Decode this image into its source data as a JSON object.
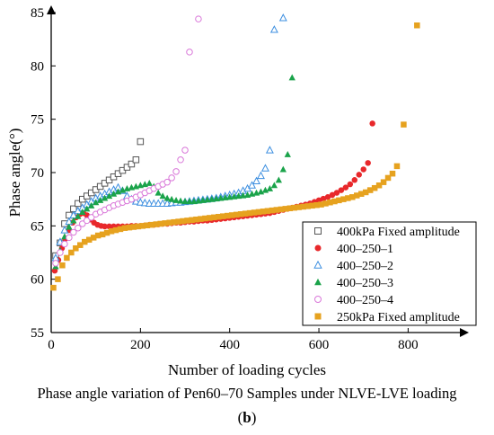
{
  "figure": {
    "caption": "Phase angle variation of Pen60–70 Samples under NLVE-LVE loading",
    "panel_open": "(",
    "panel_letter": "b",
    "panel_close": ")"
  },
  "chart_data": {
    "type": "scatter",
    "title": "",
    "xlabel": "Number of loading cycles",
    "ylabel": "Phase angle(°)",
    "xlim": [
      0,
      920
    ],
    "ylim": [
      55,
      85
    ],
    "xticks": [
      0,
      200,
      400,
      600,
      800
    ],
    "yticks": [
      55,
      60,
      65,
      70,
      75,
      80,
      85
    ],
    "legend_position": "bottom-right",
    "grid": false,
    "series": [
      {
        "name": "400kPa Fixed amplitude",
        "marker": "open-square",
        "color": "#555555",
        "points": [
          [
            10,
            62.2
          ],
          [
            20,
            63.4
          ],
          [
            30,
            65.2
          ],
          [
            40,
            66.0
          ],
          [
            50,
            66.6
          ],
          [
            60,
            67.1
          ],
          [
            70,
            67.5
          ],
          [
            80,
            67.8
          ],
          [
            90,
            68.1
          ],
          [
            100,
            68.4
          ],
          [
            110,
            68.7
          ],
          [
            120,
            69.0
          ],
          [
            130,
            69.3
          ],
          [
            140,
            69.6
          ],
          [
            150,
            69.9
          ],
          [
            160,
            70.2
          ],
          [
            170,
            70.5
          ],
          [
            180,
            70.8
          ],
          [
            190,
            71.2
          ],
          [
            200,
            72.9
          ]
        ]
      },
      {
        "name": "400–250–1",
        "marker": "filled-circle",
        "color": "#e8282b",
        "points": [
          [
            8,
            60.8
          ],
          [
            16,
            61.8
          ],
          [
            24,
            62.9
          ],
          [
            32,
            63.8
          ],
          [
            40,
            64.6
          ],
          [
            48,
            65.3
          ],
          [
            56,
            65.8
          ],
          [
            64,
            66.1
          ],
          [
            72,
            66.2
          ],
          [
            80,
            66.0
          ],
          [
            88,
            65.6
          ],
          [
            96,
            65.3
          ],
          [
            104,
            65.1
          ],
          [
            112,
            65.0
          ],
          [
            120,
            64.95
          ],
          [
            130,
            64.95
          ],
          [
            140,
            64.95
          ],
          [
            150,
            64.95
          ],
          [
            160,
            64.95
          ],
          [
            170,
            64.95
          ],
          [
            180,
            65.0
          ],
          [
            190,
            65.0
          ],
          [
            200,
            65.0
          ],
          [
            210,
            65.05
          ],
          [
            220,
            65.1
          ],
          [
            230,
            65.1
          ],
          [
            240,
            65.15
          ],
          [
            250,
            65.2
          ],
          [
            260,
            65.2
          ],
          [
            270,
            65.25
          ],
          [
            280,
            65.3
          ],
          [
            290,
            65.3
          ],
          [
            300,
            65.35
          ],
          [
            310,
            65.4
          ],
          [
            320,
            65.4
          ],
          [
            330,
            65.45
          ],
          [
            340,
            65.5
          ],
          [
            350,
            65.5
          ],
          [
            360,
            65.55
          ],
          [
            370,
            65.6
          ],
          [
            380,
            65.65
          ],
          [
            390,
            65.7
          ],
          [
            400,
            65.75
          ],
          [
            410,
            65.8
          ],
          [
            420,
            65.85
          ],
          [
            430,
            65.9
          ],
          [
            440,
            65.95
          ],
          [
            450,
            66.0
          ],
          [
            460,
            66.05
          ],
          [
            470,
            66.1
          ],
          [
            480,
            66.15
          ],
          [
            490,
            66.2
          ],
          [
            500,
            66.3
          ],
          [
            510,
            66.4
          ],
          [
            520,
            66.5
          ],
          [
            530,
            66.6
          ],
          [
            540,
            66.7
          ],
          [
            550,
            66.8
          ],
          [
            560,
            66.9
          ],
          [
            570,
            67.0
          ],
          [
            580,
            67.1
          ],
          [
            590,
            67.25
          ],
          [
            600,
            67.4
          ],
          [
            610,
            67.55
          ],
          [
            620,
            67.7
          ],
          [
            630,
            67.9
          ],
          [
            640,
            68.1
          ],
          [
            650,
            68.35
          ],
          [
            660,
            68.6
          ],
          [
            670,
            68.9
          ],
          [
            680,
            69.3
          ],
          [
            690,
            69.8
          ],
          [
            700,
            70.3
          ],
          [
            710,
            70.9
          ],
          [
            720,
            74.6
          ]
        ]
      },
      {
        "name": "400–250–2",
        "marker": "open-triangle",
        "color": "#3d8fe0",
        "points": [
          [
            10,
            62.0
          ],
          [
            20,
            63.5
          ],
          [
            30,
            64.6
          ],
          [
            40,
            65.4
          ],
          [
            50,
            66.0
          ],
          [
            60,
            66.4
          ],
          [
            70,
            66.7
          ],
          [
            80,
            67.0
          ],
          [
            90,
            67.3
          ],
          [
            100,
            67.6
          ],
          [
            110,
            67.8
          ],
          [
            120,
            68.0
          ],
          [
            130,
            68.2
          ],
          [
            140,
            68.4
          ],
          [
            150,
            68.6
          ],
          [
            160,
            68.3
          ],
          [
            170,
            67.8
          ],
          [
            180,
            67.5
          ],
          [
            190,
            67.3
          ],
          [
            200,
            67.2
          ],
          [
            210,
            67.15
          ],
          [
            220,
            67.1
          ],
          [
            230,
            67.1
          ],
          [
            240,
            67.1
          ],
          [
            250,
            67.1
          ],
          [
            260,
            67.1
          ],
          [
            270,
            67.15
          ],
          [
            280,
            67.2
          ],
          [
            290,
            67.2
          ],
          [
            300,
            67.25
          ],
          [
            310,
            67.3
          ],
          [
            320,
            67.35
          ],
          [
            330,
            67.4
          ],
          [
            340,
            67.45
          ],
          [
            350,
            67.5
          ],
          [
            360,
            67.55
          ],
          [
            370,
            67.6
          ],
          [
            380,
            67.7
          ],
          [
            390,
            67.8
          ],
          [
            400,
            67.9
          ],
          [
            410,
            68.0
          ],
          [
            420,
            68.1
          ],
          [
            430,
            68.3
          ],
          [
            440,
            68.5
          ],
          [
            450,
            68.8
          ],
          [
            460,
            69.2
          ],
          [
            470,
            69.7
          ],
          [
            480,
            70.4
          ],
          [
            490,
            72.1
          ],
          [
            500,
            83.4
          ],
          [
            520,
            84.5
          ]
        ]
      },
      {
        "name": "400–250–3",
        "marker": "filled-triangle",
        "color": "#1aa34a",
        "points": [
          [
            10,
            61.2
          ],
          [
            20,
            62.7
          ],
          [
            30,
            64.0
          ],
          [
            40,
            64.9
          ],
          [
            50,
            65.5
          ],
          [
            60,
            65.9
          ],
          [
            70,
            66.3
          ],
          [
            80,
            66.6
          ],
          [
            90,
            66.9
          ],
          [
            100,
            67.2
          ],
          [
            110,
            67.4
          ],
          [
            120,
            67.6
          ],
          [
            130,
            67.8
          ],
          [
            140,
            68.0
          ],
          [
            150,
            68.2
          ],
          [
            160,
            68.35
          ],
          [
            170,
            68.5
          ],
          [
            180,
            68.6
          ],
          [
            190,
            68.7
          ],
          [
            200,
            68.8
          ],
          [
            210,
            68.9
          ],
          [
            220,
            69.0
          ],
          [
            230,
            68.7
          ],
          [
            240,
            68.1
          ],
          [
            250,
            67.8
          ],
          [
            260,
            67.6
          ],
          [
            270,
            67.5
          ],
          [
            280,
            67.4
          ],
          [
            290,
            67.35
          ],
          [
            300,
            67.3
          ],
          [
            310,
            67.3
          ],
          [
            320,
            67.3
          ],
          [
            330,
            67.35
          ],
          [
            340,
            67.4
          ],
          [
            350,
            67.45
          ],
          [
            360,
            67.5
          ],
          [
            370,
            67.55
          ],
          [
            380,
            67.6
          ],
          [
            390,
            67.65
          ],
          [
            400,
            67.7
          ],
          [
            410,
            67.75
          ],
          [
            420,
            67.8
          ],
          [
            430,
            67.85
          ],
          [
            440,
            67.9
          ],
          [
            450,
            68.0
          ],
          [
            460,
            68.1
          ],
          [
            470,
            68.2
          ],
          [
            480,
            68.35
          ],
          [
            490,
            68.5
          ],
          [
            500,
            68.8
          ],
          [
            510,
            69.3
          ],
          [
            520,
            70.3
          ],
          [
            530,
            71.7
          ],
          [
            540,
            78.9
          ]
        ]
      },
      {
        "name": "400–250–4",
        "marker": "open-circle",
        "color": "#d977d9",
        "points": [
          [
            10,
            61.5
          ],
          [
            20,
            62.5
          ],
          [
            30,
            63.3
          ],
          [
            40,
            63.9
          ],
          [
            50,
            64.4
          ],
          [
            60,
            64.8
          ],
          [
            70,
            65.2
          ],
          [
            80,
            65.5
          ],
          [
            90,
            65.8
          ],
          [
            100,
            66.1
          ],
          [
            110,
            66.3
          ],
          [
            120,
            66.5
          ],
          [
            130,
            66.7
          ],
          [
            140,
            66.9
          ],
          [
            150,
            67.05
          ],
          [
            160,
            67.2
          ],
          [
            170,
            67.35
          ],
          [
            180,
            67.5
          ],
          [
            190,
            67.7
          ],
          [
            200,
            67.9
          ],
          [
            210,
            68.1
          ],
          [
            220,
            68.3
          ],
          [
            230,
            68.5
          ],
          [
            240,
            68.7
          ],
          [
            250,
            68.9
          ],
          [
            260,
            69.1
          ],
          [
            270,
            69.5
          ],
          [
            280,
            70.1
          ],
          [
            290,
            71.2
          ],
          [
            300,
            72.1
          ],
          [
            310,
            81.3
          ],
          [
            330,
            84.4
          ]
        ]
      },
      {
        "name": "250kPa Fixed amplitude",
        "marker": "filled-square",
        "color": "#e6a21f",
        "points": [
          [
            5,
            59.2
          ],
          [
            15,
            60.0
          ],
          [
            25,
            61.3
          ],
          [
            35,
            62.0
          ],
          [
            45,
            62.5
          ],
          [
            55,
            62.9
          ],
          [
            65,
            63.2
          ],
          [
            75,
            63.5
          ],
          [
            85,
            63.7
          ],
          [
            95,
            63.9
          ],
          [
            105,
            64.1
          ],
          [
            115,
            64.2
          ],
          [
            125,
            64.35
          ],
          [
            135,
            64.5
          ],
          [
            145,
            64.6
          ],
          [
            155,
            64.7
          ],
          [
            165,
            64.8
          ],
          [
            175,
            64.85
          ],
          [
            185,
            64.9
          ],
          [
            195,
            64.95
          ],
          [
            205,
            65.0
          ],
          [
            215,
            65.05
          ],
          [
            225,
            65.1
          ],
          [
            235,
            65.15
          ],
          [
            245,
            65.2
          ],
          [
            255,
            65.25
          ],
          [
            265,
            65.3
          ],
          [
            275,
            65.35
          ],
          [
            285,
            65.4
          ],
          [
            295,
            65.45
          ],
          [
            305,
            65.5
          ],
          [
            315,
            65.55
          ],
          [
            325,
            65.6
          ],
          [
            335,
            65.65
          ],
          [
            345,
            65.7
          ],
          [
            355,
            65.75
          ],
          [
            365,
            65.8
          ],
          [
            375,
            65.85
          ],
          [
            385,
            65.9
          ],
          [
            395,
            65.95
          ],
          [
            405,
            66.0
          ],
          [
            415,
            66.05
          ],
          [
            425,
            66.1
          ],
          [
            435,
            66.15
          ],
          [
            445,
            66.2
          ],
          [
            455,
            66.25
          ],
          [
            465,
            66.3
          ],
          [
            475,
            66.35
          ],
          [
            485,
            66.4
          ],
          [
            495,
            66.45
          ],
          [
            505,
            66.5
          ],
          [
            515,
            66.55
          ],
          [
            525,
            66.6
          ],
          [
            535,
            66.65
          ],
          [
            545,
            66.7
          ],
          [
            555,
            66.75
          ],
          [
            565,
            66.8
          ],
          [
            575,
            66.85
          ],
          [
            585,
            66.9
          ],
          [
            595,
            66.95
          ],
          [
            605,
            67.0
          ],
          [
            615,
            67.1
          ],
          [
            625,
            67.2
          ],
          [
            635,
            67.3
          ],
          [
            645,
            67.4
          ],
          [
            655,
            67.5
          ],
          [
            665,
            67.6
          ],
          [
            675,
            67.7
          ],
          [
            685,
            67.85
          ],
          [
            695,
            68.0
          ],
          [
            705,
            68.15
          ],
          [
            715,
            68.35
          ],
          [
            725,
            68.55
          ],
          [
            735,
            68.8
          ],
          [
            745,
            69.1
          ],
          [
            755,
            69.5
          ],
          [
            765,
            69.9
          ],
          [
            775,
            70.6
          ],
          [
            790,
            74.5
          ],
          [
            820,
            83.8
          ]
        ]
      }
    ]
  }
}
